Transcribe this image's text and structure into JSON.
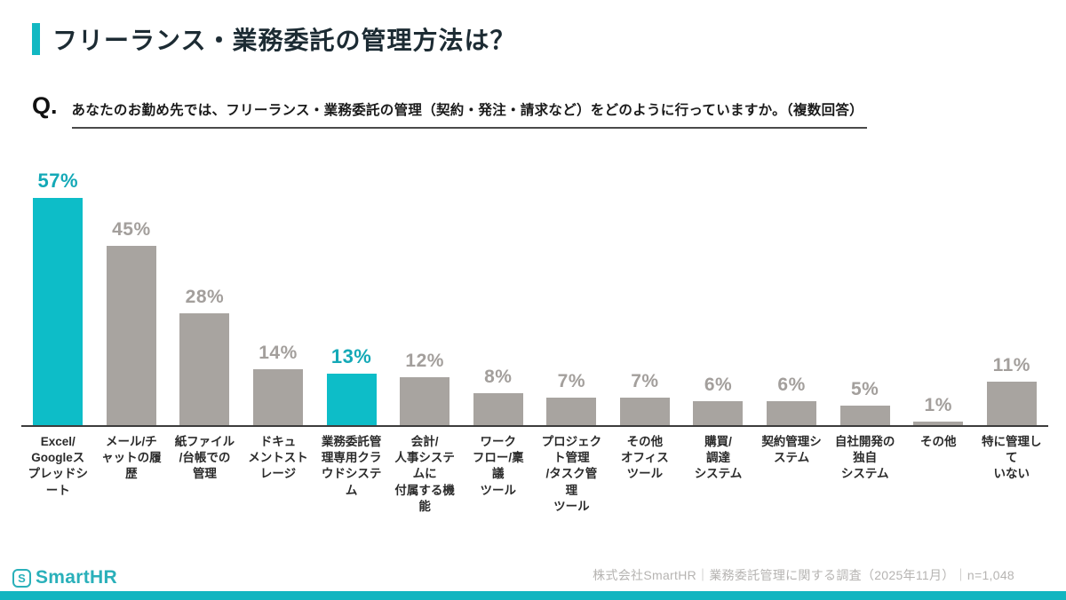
{
  "accent_color": "#12b8c2",
  "header": {
    "title": "フリーランス・業務委託の管理方法は？"
  },
  "question": {
    "prefix": "Q.",
    "text": "あなたのお勤め先では、フリーランス・業務委託の管理（契約・発注・請求など）をどのように行っていますか。（複数回答）"
  },
  "chart_data": {
    "type": "bar",
    "title": "フリーランス・業務委託の管理方法は？",
    "categories": [
      "Excel/Googleスプレッドシート",
      "メール/チャットの履歴",
      "紙ファイル/台帳での管理",
      "ドキュメントストレージ",
      "業務委託管理専用クラウドシステム",
      "会計/人事システムに付属する機能",
      "ワークフロー/稟議ツール",
      "プロジェクト管理/タスク管理ツール",
      "その他オフィスツール",
      "購買/調達システム",
      "契約管理システム",
      "自社開発の独自システム",
      "その他",
      "特に管理していない"
    ],
    "categories_wrapped": [
      "Excel/\nGoogleス\nプレッドシ\nート",
      "メール/チ\nャットの履\n歴",
      "紙ファイル\n/台帳での\n管理",
      "ドキュ\nメントスト\nレージ",
      "業務委託管\n理専用クラ\nウドシステ\nム",
      "会計/\n人事システ\nムに\n付属する機\n能",
      "ワーク\nフロー/稟\n議\nツール",
      "プロジェク\nト管理\n/タスク管\n理\nツール",
      "その他\nオフィス\nツール",
      "購買/\n調達\nシステム",
      "契約管理シ\nステム",
      "自社開発の\n独自\nシステム",
      "その他",
      "特に管理し\nて\nいない"
    ],
    "values": [
      57,
      45,
      28,
      14,
      13,
      12,
      8,
      7,
      7,
      6,
      6,
      5,
      1,
      11
    ],
    "value_suffix": "%",
    "highlight_indices": [
      0,
      4
    ],
    "bar_color": "#a8a4a0",
    "highlight_color": "#0dbdc8",
    "value_label_color": "#a39f9c",
    "highlight_label_color": "#14a9b7",
    "ylim": [
      0,
      60
    ],
    "grid": false,
    "legend": "none",
    "xlabel": "",
    "ylabel": ""
  },
  "footer": {
    "logo_icon": "S",
    "logo_text": "SmartHR",
    "source_text": "株式会社SmartHR｜業務委託管理に関する調査（2025年11月）｜n=1,048"
  }
}
